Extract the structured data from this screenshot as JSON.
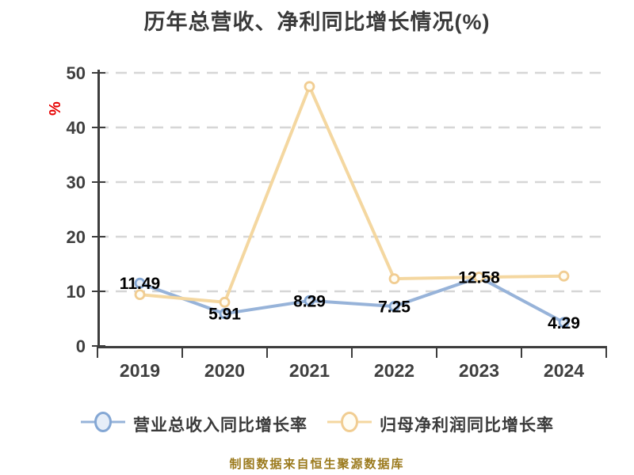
{
  "chart_data": {
    "type": "line",
    "title": "历年总营收、净利同比增长情况(%)",
    "background": "#ffffff",
    "y_axis": {
      "unit": "%",
      "unit_color": "#e60000",
      "ticks": [
        0,
        10,
        20,
        30,
        40,
        50
      ],
      "range": [
        0,
        50
      ]
    },
    "x_axis": {
      "categories": [
        "2019",
        "2020",
        "2021",
        "2022",
        "2023",
        "2024"
      ]
    },
    "grid": {
      "style": "dashed-horizontal",
      "color": "#d6d6d6"
    },
    "axis_color": "#3d3d3d",
    "tick_label_color": "#3f3f3f",
    "data_label_color": "#000000",
    "legend_position": "bottom",
    "series": [
      {
        "name": "营业总收入同比增长率",
        "line_color": "#97b3d9",
        "marker_ring": "#84a7d4",
        "marker_fill": "#e6eef8",
        "values": [
          11.49,
          5.91,
          8.29,
          7.25,
          12.58,
          4.29
        ],
        "data_labels": [
          "11.49",
          "5.91",
          "8.29",
          "7.25",
          "12.58",
          "4.29"
        ]
      },
      {
        "name": "归母净利润同比增长率",
        "line_color": "#f4d7a0",
        "marker_ring": "#f1cd92",
        "marker_fill": "#fffdf4",
        "values": [
          9.4,
          8.0,
          47.5,
          12.3,
          12.6,
          12.8
        ],
        "data_labels": []
      }
    ],
    "footer": "制图数据来自恒生聚源数据库",
    "footer_color": "#9b7a1d"
  }
}
